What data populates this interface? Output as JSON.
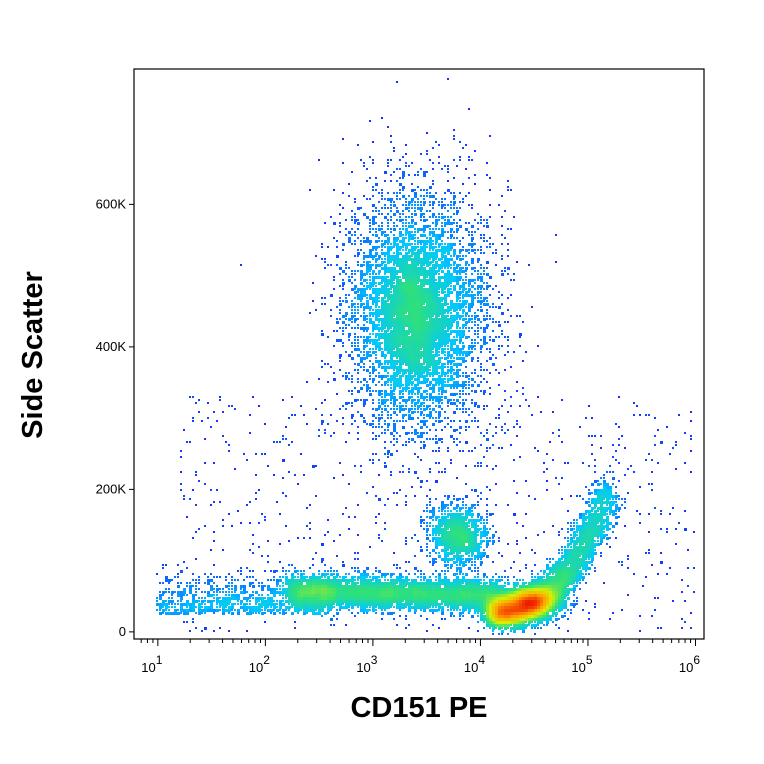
{
  "chart_data": {
    "type": "scatter",
    "subtype": "flow-cytometry density dot plot",
    "xlabel": "CD151 PE",
    "ylabel": "Side Scatter",
    "x_scale": "log",
    "xlim": [
      6,
      1200000
    ],
    "ylim": [
      -10000,
      790000
    ],
    "x_ticks": [
      {
        "value": 10,
        "base": "10",
        "exp": "1"
      },
      {
        "value": 100,
        "base": "10",
        "exp": "2"
      },
      {
        "value": 1000,
        "base": "10",
        "exp": "3"
      },
      {
        "value": 10000,
        "base": "10",
        "exp": "4"
      },
      {
        "value": 100000,
        "base": "10",
        "exp": "5"
      },
      {
        "value": 1000000,
        "base": "10",
        "exp": "6"
      }
    ],
    "y_ticks": [
      {
        "value": 0,
        "label": "0"
      },
      {
        "value": 200000,
        "label": "200K"
      },
      {
        "value": 400000,
        "label": "400K"
      },
      {
        "value": 600000,
        "label": "600K"
      }
    ],
    "density_colormap": [
      "#1a1aff",
      "#00c8ff",
      "#2ee07a",
      "#d8f000",
      "#ffa000",
      "#ee1a00"
    ],
    "populations": [
      {
        "x_center": 12000,
        "x_min": 9000,
        "x_max": 160000,
        "y_center": 50000,
        "y_range": [
          15000,
          230000
        ],
        "density": "very high"
      },
      {
        "x_center": 5000,
        "y_center": 60000,
        "y_range": [
          0,
          110000
        ],
        "density": "high"
      },
      {
        "x_center": 2500,
        "y_center": 440000,
        "y_range": [
          280000,
          720000
        ],
        "density": "medium"
      },
      {
        "x_center": 6000,
        "y_center": 135000,
        "y_range": [
          80000,
          190000
        ],
        "density": "medium"
      }
    ],
    "grid": false
  }
}
